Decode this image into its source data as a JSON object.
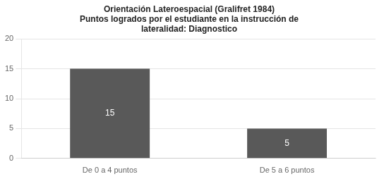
{
  "chart_data": {
    "type": "bar",
    "title": [
      "Orientación Lateroespacial (Gralifret 1984)",
      "Puntos logrados por el estudiante en la instrucción de",
      "lateralidad: Diagnostico"
    ],
    "categories": [
      "De 0 a 4 puntos",
      "De 5 a 6 puntos"
    ],
    "values": [
      15,
      5
    ],
    "color": "#595959",
    "ylim": [
      0,
      20
    ],
    "yticks": [
      0,
      5,
      10,
      15,
      20
    ],
    "grid": true,
    "data_labels": true
  }
}
